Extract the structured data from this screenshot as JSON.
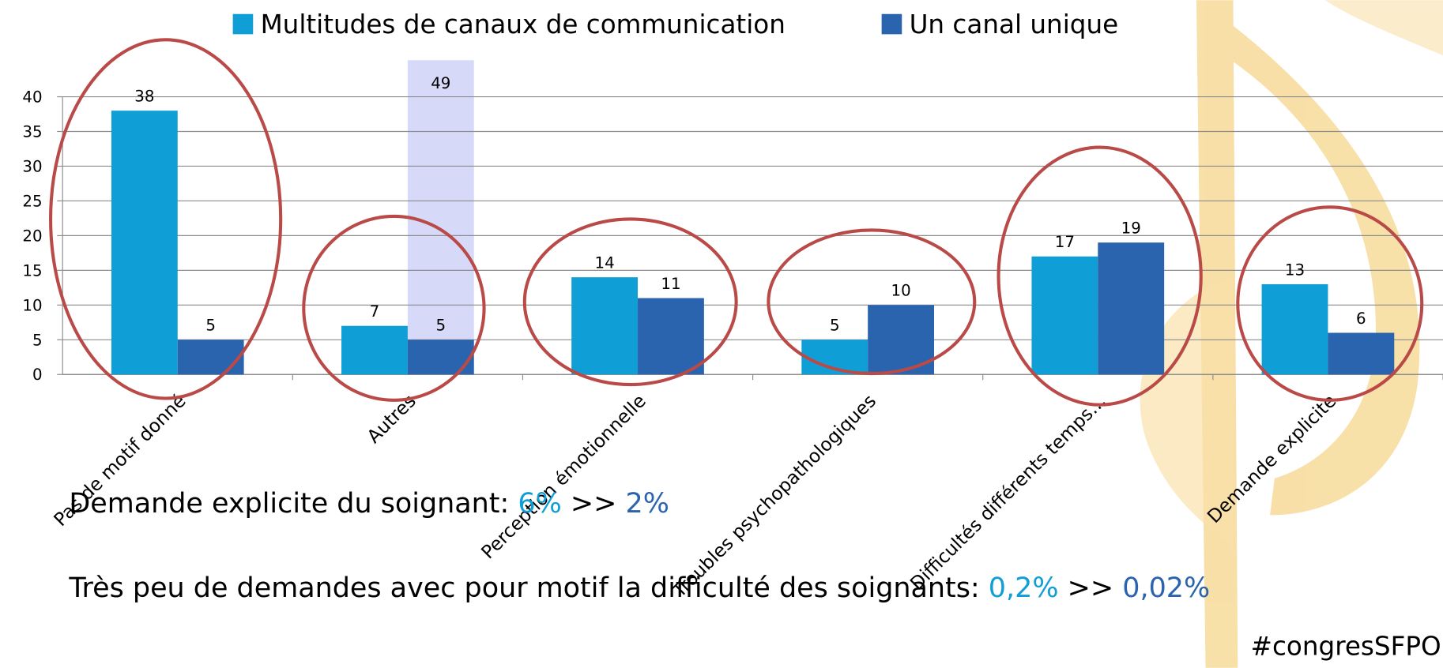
{
  "chart_data": {
    "type": "bar",
    "categories": [
      "Pas de motif donné",
      "Autres",
      "Perception émotionnelle",
      "Troubles psychopathologiques",
      "Difficultés différents temps…",
      "Demande explicite"
    ],
    "series": [
      {
        "name": "Multitudes de canaux de communication",
        "color": "#0f9fd6",
        "values": [
          38,
          7,
          14,
          5,
          17,
          13
        ]
      },
      {
        "name": "Un canal unique",
        "color": "#2b64ae",
        "values": [
          5,
          5,
          11,
          10,
          19,
          6
        ]
      }
    ],
    "highlight": {
      "category": 1,
      "value": 49,
      "color": "#cfd3f7"
    },
    "ylim": [
      0,
      45
    ],
    "yticks": [
      0,
      5,
      10,
      15,
      20,
      25,
      30,
      35,
      40
    ],
    "grid": true
  },
  "notes": [
    {
      "text": "Demande explicite du soignant: ",
      "a": "6%",
      "sep": " >> ",
      "b": "2%"
    },
    {
      "text": "Très peu de demandes avec pour motif la difficulté des soignants: ",
      "a": "0,2%",
      "sep": " >> ",
      "b": "0,02%"
    }
  ],
  "hashtag": "#congresSFPO"
}
